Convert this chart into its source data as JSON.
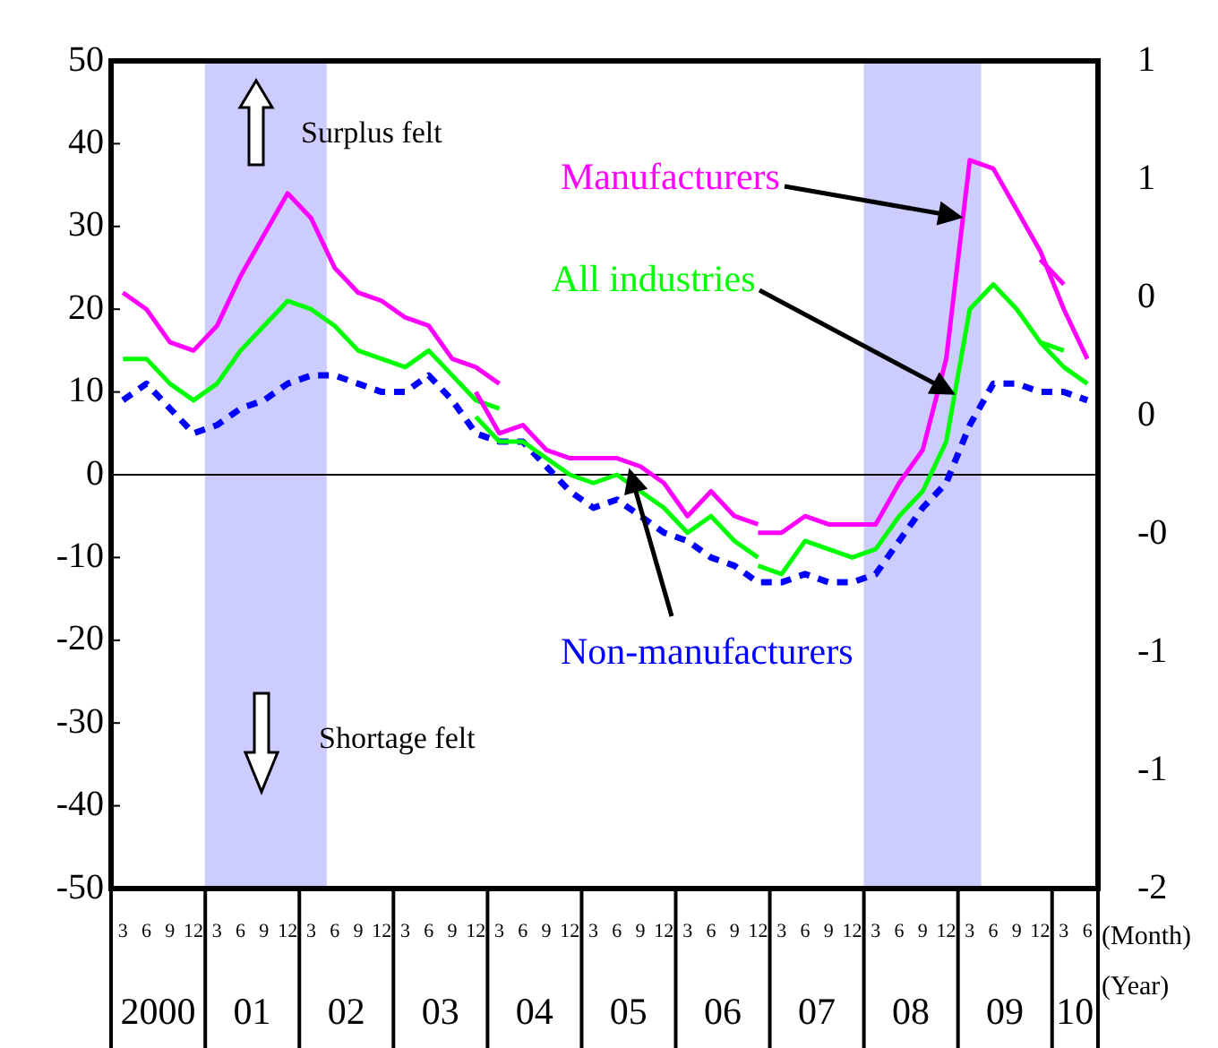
{
  "chart_data": {
    "type": "line",
    "x": [
      "2000-03",
      "2000-06",
      "2000-09",
      "2000-12",
      "2001-03",
      "2001-06",
      "2001-09",
      "2001-12",
      "2002-03",
      "2002-06",
      "2002-09",
      "2002-12",
      "2003-03",
      "2003-06",
      "2003-09",
      "2003-12",
      "2004-03",
      "2004-06",
      "2004-09",
      "2004-12",
      "2005-03",
      "2005-06",
      "2005-09",
      "2005-12",
      "2006-03",
      "2006-06",
      "2006-09",
      "2006-12",
      "2007-03",
      "2007-06",
      "2007-09",
      "2007-12",
      "2008-03",
      "2008-06",
      "2008-09",
      "2008-12",
      "2009-03",
      "2009-06",
      "2009-09",
      "2009-12",
      "2010-03",
      "2010-06"
    ],
    "xlim": [
      "2000-01-16",
      "2010-07-12"
    ],
    "xticks": [
      {
        "value": "2000-03",
        "label": "3"
      },
      {
        "value": "2000-06",
        "label": "6"
      },
      {
        "value": "2000-09",
        "label": "9"
      },
      {
        "value": "2000-12",
        "label": "12"
      },
      {
        "value": "2001-03",
        "label": "3"
      },
      {
        "value": "2001-06",
        "label": "6"
      },
      {
        "value": "2001-09",
        "label": "9"
      },
      {
        "value": "2001-12",
        "label": "12"
      },
      {
        "value": "2002-03",
        "label": "3"
      },
      {
        "value": "2002-06",
        "label": "6"
      },
      {
        "value": "2002-09",
        "label": "9"
      },
      {
        "value": "2002-12",
        "label": "12"
      },
      {
        "value": "2003-03",
        "label": "3"
      },
      {
        "value": "2003-06",
        "label": "6"
      },
      {
        "value": "2003-09",
        "label": "9"
      },
      {
        "value": "2003-12",
        "label": "12"
      },
      {
        "value": "2004-03",
        "label": "3"
      },
      {
        "value": "2004-06",
        "label": "6"
      },
      {
        "value": "2004-09",
        "label": "9"
      },
      {
        "value": "2004-12",
        "label": "12"
      },
      {
        "value": "2005-03",
        "label": "3"
      },
      {
        "value": "2005-06",
        "label": "6"
      },
      {
        "value": "2005-09",
        "label": "9"
      },
      {
        "value": "2005-12",
        "label": "12"
      },
      {
        "value": "2006-03",
        "label": "3"
      },
      {
        "value": "2006-06",
        "label": "6"
      },
      {
        "value": "2006-09",
        "label": "9"
      },
      {
        "value": "2006-12",
        "label": "12"
      },
      {
        "value": "2007-03",
        "label": "3"
      },
      {
        "value": "2007-06",
        "label": "6"
      },
      {
        "value": "2007-09",
        "label": "9"
      },
      {
        "value": "2007-12",
        "label": "12"
      },
      {
        "value": "2008-03",
        "label": "3"
      },
      {
        "value": "2008-06",
        "label": "6"
      },
      {
        "value": "2008-09",
        "label": "9"
      },
      {
        "value": "2008-12",
        "label": "12"
      },
      {
        "value": "2009-03",
        "label": "3"
      },
      {
        "value": "2009-06",
        "label": "6"
      },
      {
        "value": "2009-09",
        "label": "9"
      },
      {
        "value": "2009-12",
        "label": "12"
      },
      {
        "value": "2010-03",
        "label": "3"
      },
      {
        "value": "2010-06",
        "label": "6"
      }
    ],
    "x2lim": [
      "2000-01-16",
      "2010-07-12"
    ],
    "x2ticks": [
      {
        "value": "2000-07-16",
        "label": "2000"
      },
      {
        "value": "2001-07-16",
        "label": "01"
      },
      {
        "value": "2002-07-16",
        "label": "02"
      },
      {
        "value": "2003-07-16",
        "label": "03"
      },
      {
        "value": "2004-07-16",
        "label": "04"
      },
      {
        "value": "2005-07-16",
        "label": "05"
      },
      {
        "value": "2006-07-16",
        "label": "06"
      },
      {
        "value": "2007-07-16",
        "label": "07"
      },
      {
        "value": "2008-07-16",
        "label": "08"
      },
      {
        "value": "2009-07-16",
        "label": "09"
      },
      {
        "value": "2010-04-14",
        "label": "10"
      }
    ],
    "ylim": [
      -50,
      50
    ],
    "yticks": [
      -50,
      -40,
      -30,
      -20,
      -10,
      0,
      10,
      20,
      30,
      40,
      50
    ],
    "y2lim": [
      -2,
      1.5
    ],
    "y2ticks": [
      -2,
      {
        "value": -1.5,
        "label": "-1"
      },
      -1,
      {
        "value": -0.5,
        "label": "-0"
      },
      0,
      {
        "value": 0.5,
        "label": "0"
      },
      1,
      {
        "value": 1.5,
        "label": "1"
      }
    ],
    "series": [
      {
        "color": "#ff00ff",
        "values": [
          22,
          20,
          16,
          15,
          18,
          24,
          29,
          34,
          31,
          25,
          22,
          21,
          19,
          18,
          14,
          13,
          11,
          null,
          null,
          null,
          null,
          null,
          null,
          null,
          null,
          null,
          null,
          null,
          null,
          null,
          null,
          null,
          null,
          null,
          null,
          null,
          null,
          null,
          null,
          null,
          null,
          null
        ]
      },
      {
        "color": "#ff00ff",
        "values": [
          null,
          null,
          null,
          null,
          null,
          null,
          null,
          null,
          null,
          null,
          null,
          null,
          null,
          null,
          null,
          10,
          5,
          6,
          3,
          2,
          2,
          2,
          1,
          -1,
          -5,
          -2,
          -5,
          -6,
          null,
          null,
          null,
          null,
          null,
          null,
          null,
          null,
          null,
          null,
          null,
          null,
          null,
          null
        ]
      },
      {
        "name": "Manufacturers",
        "color": "#ff00ff",
        "values": [
          null,
          null,
          null,
          null,
          null,
          null,
          null,
          null,
          null,
          null,
          null,
          null,
          null,
          null,
          null,
          null,
          null,
          null,
          null,
          null,
          null,
          null,
          null,
          null,
          null,
          null,
          null,
          -7,
          -7,
          -5,
          -6,
          -6,
          -6,
          -1,
          3,
          14,
          38,
          37,
          32,
          27,
          20,
          14
        ]
      },
      {
        "color": "#ff00ff",
        "values": [
          null,
          null,
          null,
          null,
          null,
          null,
          null,
          null,
          null,
          null,
          null,
          null,
          null,
          null,
          null,
          null,
          null,
          null,
          null,
          null,
          null,
          null,
          null,
          null,
          null,
          null,
          null,
          null,
          null,
          null,
          null,
          null,
          null,
          null,
          null,
          null,
          null,
          null,
          null,
          26,
          23,
          null
        ]
      },
      {
        "color": "#00ff00",
        "values": [
          14,
          14,
          11,
          9,
          11,
          15,
          18,
          21,
          20,
          18,
          15,
          14,
          13,
          15,
          12,
          9,
          8,
          null,
          null,
          null,
          null,
          null,
          null,
          null,
          null,
          null,
          null,
          null,
          null,
          null,
          null,
          null,
          null,
          null,
          null,
          null,
          null,
          null,
          null,
          null,
          null,
          null
        ]
      },
      {
        "color": "#00ff00",
        "values": [
          null,
          null,
          null,
          null,
          null,
          null,
          null,
          null,
          null,
          null,
          null,
          null,
          null,
          null,
          null,
          7,
          4,
          4,
          2,
          0,
          -1,
          0,
          -2,
          -4,
          -7,
          -5,
          -8,
          -10,
          null,
          null,
          null,
          null,
          null,
          null,
          null,
          null,
          null,
          null,
          null,
          null,
          null,
          null
        ]
      },
      {
        "name": "All industries",
        "color": "#00ff00",
        "values": [
          null,
          null,
          null,
          null,
          null,
          null,
          null,
          null,
          null,
          null,
          null,
          null,
          null,
          null,
          null,
          null,
          null,
          null,
          null,
          null,
          null,
          null,
          null,
          null,
          null,
          null,
          null,
          -11,
          -12,
          -8,
          -9,
          -10,
          -9,
          -5,
          -2,
          4,
          20,
          23,
          20,
          16,
          13,
          11
        ]
      },
      {
        "color": "#00ff00",
        "values": [
          null,
          null,
          null,
          null,
          null,
          null,
          null,
          null,
          null,
          null,
          null,
          null,
          null,
          null,
          null,
          null,
          null,
          null,
          null,
          null,
          null,
          null,
          null,
          null,
          null,
          null,
          null,
          null,
          null,
          null,
          null,
          null,
          null,
          null,
          null,
          null,
          null,
          null,
          null,
          16,
          15,
          null
        ]
      },
      {
        "name": "Non-manufacturers",
        "color": "#0000ff",
        "line_style": "dashed",
        "values": [
          9,
          11,
          8,
          5,
          6,
          8,
          9,
          11,
          12,
          12,
          11,
          10,
          10,
          12,
          9,
          5,
          4,
          4,
          1,
          -2,
          -4,
          -3,
          -5,
          -7,
          -8,
          -10,
          -11,
          -13,
          -13,
          -12,
          -13,
          -13,
          -12,
          -8,
          -4,
          -1,
          6,
          11,
          11,
          10,
          10,
          9
        ]
      }
    ],
    "bands": [
      {
        "axis": "x",
        "from": "2001-01-15",
        "to": "2002-05",
        "color": "#ccccff"
      },
      {
        "axis": "x",
        "from": "2008-01-16",
        "to": "2009-04-15",
        "color": "#ccccff"
      }
    ],
    "ref_lines": [
      {
        "axis": "y",
        "value": 0,
        "color": "#000000"
      }
    ],
    "annotations": [
      "Surplus felt",
      "Shortage felt",
      "(Month)",
      "(Year)"
    ],
    "marker": "none",
    "line_style": "solid",
    "grid": false,
    "legend": false
  }
}
